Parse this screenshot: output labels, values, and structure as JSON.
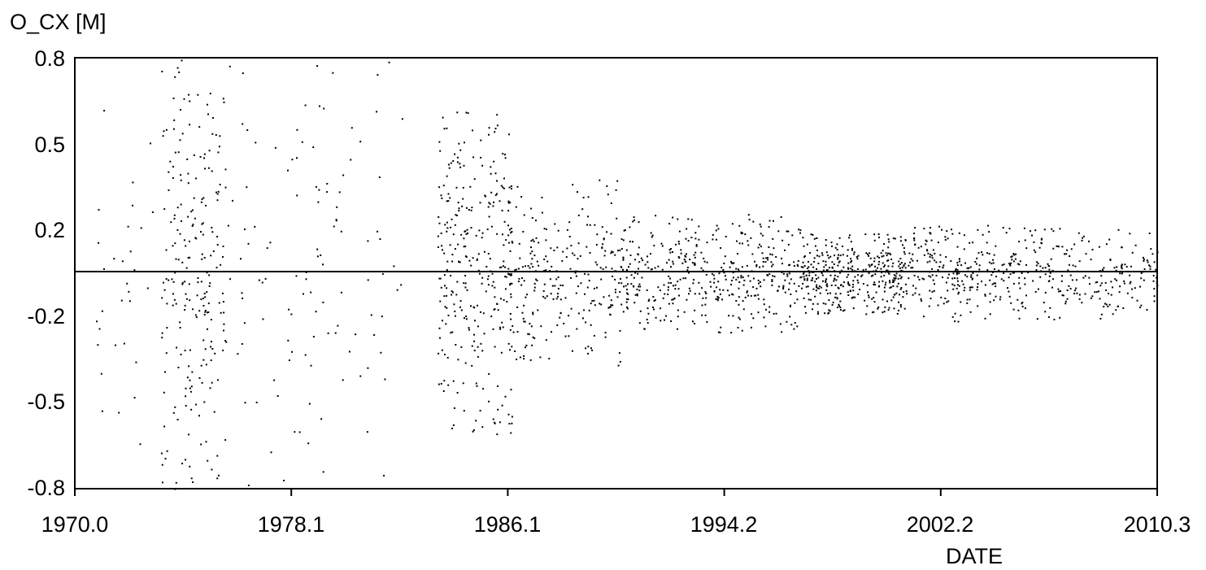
{
  "chart_data": {
    "type": "scatter",
    "ylabel": "O_CX [M]",
    "xlabel": "DATE",
    "xlim": [
      1970.0,
      2010.3
    ],
    "ylim": [
      -0.8,
      0.8
    ],
    "x_ticks": [
      "1970.0",
      "1978.1",
      "1986.1",
      "1994.2",
      "2002.2",
      "2010.3"
    ],
    "y_ticks": [
      "0.8",
      "0.5",
      "0.2",
      "-0.2",
      "-0.5",
      "-0.8"
    ],
    "reference_line_y": 0.0,
    "grid": false,
    "point_color": "#000000",
    "series": [
      {
        "segments": [
          {
            "x_start": 1970.7,
            "x_end": 1982.2,
            "y_spread": 0.8,
            "density": 180
          },
          {
            "x_start": 1973.2,
            "x_end": 1975.6,
            "y_spread": 0.8,
            "density": 200
          },
          {
            "x_start": 1983.5,
            "x_end": 1986.3,
            "y_spread": 0.6,
            "density": 320
          },
          {
            "x_start": 1986.3,
            "x_end": 1990.5,
            "y_spread": 0.35,
            "density": 260
          },
          {
            "x_start": 1990.5,
            "x_end": 1997.0,
            "y_spread": 0.22,
            "density": 420
          },
          {
            "x_start": 1997.0,
            "x_end": 2001.0,
            "y_spread": 0.15,
            "density": 380
          },
          {
            "x_start": 2001.0,
            "x_end": 2005.0,
            "y_spread": 0.18,
            "density": 240
          },
          {
            "x_start": 2005.0,
            "x_end": 2010.3,
            "y_spread": 0.17,
            "density": 230
          }
        ]
      }
    ]
  }
}
